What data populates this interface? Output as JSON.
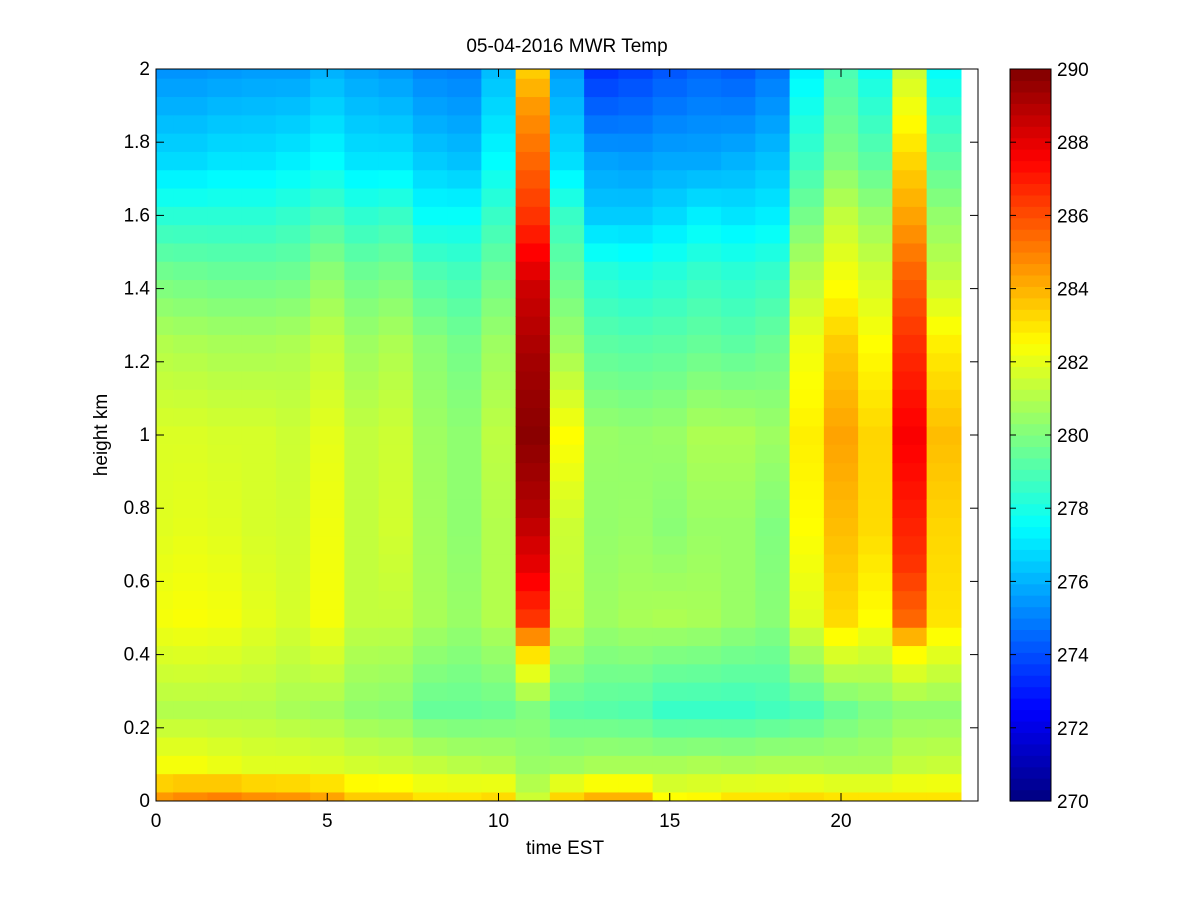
{
  "chart_data": {
    "type": "heatmap",
    "title": "05-04-2016 MWR Temp",
    "xlabel": "time EST",
    "ylabel": "height km",
    "xlim": [
      0,
      24
    ],
    "ylim": [
      0,
      2
    ],
    "x_ticks": [
      0,
      5,
      10,
      15,
      20
    ],
    "y_ticks": [
      0,
      0.2,
      0.4,
      0.6,
      0.8,
      1,
      1.2,
      1.4,
      1.6,
      1.8,
      2
    ],
    "colorbar": {
      "min": 270,
      "max": 290,
      "ticks": [
        270,
        272,
        274,
        276,
        278,
        280,
        282,
        284,
        286,
        288,
        290
      ],
      "colormap": "jet"
    },
    "grid": false,
    "times": [
      0,
      1,
      2,
      3,
      4,
      5,
      6,
      7,
      8,
      9,
      10,
      11,
      12,
      13,
      14,
      15,
      16,
      17,
      18,
      19,
      20,
      21,
      22,
      23
    ],
    "heights": [
      0,
      0.05,
      0.1,
      0.15,
      0.2,
      0.25,
      0.3,
      0.35,
      0.4,
      0.45,
      0.5,
      0.55,
      0.6,
      0.65,
      0.7,
      0.75,
      0.8,
      0.85,
      0.9,
      0.95,
      1.0,
      1.05,
      1.1,
      1.15,
      1.2,
      1.25,
      1.3,
      1.35,
      1.4,
      1.45,
      1.5,
      1.55,
      1.6,
      1.65,
      1.7,
      1.75,
      1.8,
      1.85,
      1.9,
      1.95,
      2.0
    ],
    "temperature_profiles": [
      {
        "time": 0,
        "points": [
          [
            0,
            284.5
          ],
          [
            0.1,
            282.3
          ],
          [
            0.25,
            281.0
          ],
          [
            0.5,
            282.3
          ],
          [
            0.75,
            281.9
          ],
          [
            1.0,
            281.8
          ],
          [
            1.25,
            281.0
          ],
          [
            1.45,
            279.7
          ],
          [
            1.6,
            278.3
          ],
          [
            1.75,
            276.8
          ],
          [
            2.0,
            275.4
          ]
        ]
      },
      {
        "time": 1,
        "points": [
          [
            0,
            284.8
          ],
          [
            0.1,
            282.3
          ],
          [
            0.25,
            281.0
          ],
          [
            0.5,
            282.4
          ],
          [
            0.75,
            282.0
          ],
          [
            1.0,
            281.8
          ],
          [
            1.25,
            280.9
          ],
          [
            1.45,
            279.6
          ],
          [
            1.6,
            278.3
          ],
          [
            1.75,
            276.8
          ],
          [
            2.0,
            275.4
          ]
        ]
      },
      {
        "time": 2,
        "points": [
          [
            0,
            285.0
          ],
          [
            0.1,
            282.1
          ],
          [
            0.25,
            281.0
          ],
          [
            0.5,
            282.3
          ],
          [
            0.75,
            281.9
          ],
          [
            1.0,
            281.7
          ],
          [
            1.25,
            280.8
          ],
          [
            1.45,
            279.5
          ],
          [
            1.6,
            278.3
          ],
          [
            1.75,
            277.0
          ],
          [
            2.0,
            275.5
          ]
        ]
      },
      {
        "time": 3,
        "points": [
          [
            0,
            284.7
          ],
          [
            0.1,
            281.9
          ],
          [
            0.25,
            281.0
          ],
          [
            0.5,
            282.0
          ],
          [
            0.75,
            281.7
          ],
          [
            1.0,
            281.7
          ],
          [
            1.25,
            280.8
          ],
          [
            1.45,
            279.5
          ],
          [
            1.6,
            278.3
          ],
          [
            1.75,
            277.0
          ],
          [
            2.0,
            275.6
          ]
        ]
      },
      {
        "time": 4,
        "points": [
          [
            0,
            284.6
          ],
          [
            0.1,
            281.9
          ],
          [
            0.25,
            280.8
          ],
          [
            0.5,
            281.7
          ],
          [
            0.75,
            281.6
          ],
          [
            1.0,
            281.5
          ],
          [
            1.25,
            280.9
          ],
          [
            1.45,
            279.6
          ],
          [
            1.6,
            278.5
          ],
          [
            1.75,
            277.2
          ],
          [
            2.0,
            275.6
          ]
        ]
      },
      {
        "time": 5,
        "points": [
          [
            0,
            284.3
          ],
          [
            0.1,
            281.8
          ],
          [
            0.25,
            280.7
          ],
          [
            0.5,
            282.3
          ],
          [
            0.75,
            282.2
          ],
          [
            1.0,
            282.0
          ],
          [
            1.25,
            281.3
          ],
          [
            1.45,
            280.2
          ],
          [
            1.6,
            278.9
          ],
          [
            1.75,
            277.5
          ],
          [
            2.0,
            276.0
          ]
        ]
      },
      {
        "time": 6,
        "points": [
          [
            0,
            283.5
          ],
          [
            0.1,
            281.6
          ],
          [
            0.25,
            280.3
          ],
          [
            0.5,
            281.3
          ],
          [
            0.75,
            281.3
          ],
          [
            1.0,
            281.3
          ],
          [
            1.25,
            280.6
          ],
          [
            1.45,
            279.6
          ],
          [
            1.6,
            278.4
          ],
          [
            1.75,
            277.0
          ],
          [
            2.0,
            275.7
          ]
        ]
      },
      {
        "time": 7,
        "points": [
          [
            0,
            283.5
          ],
          [
            0.1,
            281.5
          ],
          [
            0.25,
            280.2
          ],
          [
            0.5,
            281.3
          ],
          [
            0.75,
            281.6
          ],
          [
            1.0,
            281.5
          ],
          [
            1.25,
            280.9
          ],
          [
            1.45,
            279.8
          ],
          [
            1.6,
            278.6
          ],
          [
            1.75,
            277.0
          ],
          [
            2.0,
            275.5
          ]
        ]
      },
      {
        "time": 8,
        "points": [
          [
            0,
            283.0
          ],
          [
            0.1,
            281.3
          ],
          [
            0.25,
            279.5
          ],
          [
            0.5,
            280.8
          ],
          [
            0.75,
            280.7
          ],
          [
            1.0,
            280.6
          ],
          [
            1.25,
            280.2
          ],
          [
            1.45,
            279.0
          ],
          [
            1.6,
            277.6
          ],
          [
            1.75,
            276.5
          ],
          [
            2.0,
            275.1
          ]
        ]
      },
      {
        "time": 9,
        "points": [
          [
            0,
            283.0
          ],
          [
            0.1,
            281.1
          ],
          [
            0.25,
            279.5
          ],
          [
            0.5,
            280.5
          ],
          [
            0.75,
            280.3
          ],
          [
            1.0,
            280.3
          ],
          [
            1.25,
            279.8
          ],
          [
            1.45,
            278.8
          ],
          [
            1.6,
            277.6
          ],
          [
            1.75,
            276.3
          ],
          [
            2.0,
            275.0
          ]
        ]
      },
      {
        "time": 10,
        "points": [
          [
            0,
            283.2
          ],
          [
            0.1,
            281.0
          ],
          [
            0.25,
            279.6
          ],
          [
            0.5,
            281.0
          ],
          [
            0.75,
            281.0
          ],
          [
            1.0,
            281.2
          ],
          [
            1.25,
            280.6
          ],
          [
            1.45,
            279.6
          ],
          [
            1.6,
            278.6
          ],
          [
            1.75,
            277.5
          ],
          [
            2.0,
            276.2
          ]
        ]
      },
      {
        "time": 11,
        "points": [
          [
            0,
            281.5
          ],
          [
            0.1,
            280.5
          ],
          [
            0.25,
            280.0
          ],
          [
            0.4,
            283.0
          ],
          [
            0.5,
            286.5
          ],
          [
            0.65,
            288.0
          ],
          [
            0.8,
            289.0
          ],
          [
            1.0,
            289.8
          ],
          [
            1.2,
            289.3
          ],
          [
            1.4,
            288.5
          ],
          [
            1.5,
            287.5
          ],
          [
            1.6,
            286.5
          ],
          [
            1.75,
            285.5
          ],
          [
            1.9,
            284.5
          ],
          [
            2.0,
            283.5
          ]
        ]
      },
      {
        "time": 12,
        "points": [
          [
            0,
            283.3
          ],
          [
            0.1,
            280.6
          ],
          [
            0.25,
            279.3
          ],
          [
            0.5,
            281.3
          ],
          [
            0.75,
            281.5
          ],
          [
            1.0,
            282.5
          ],
          [
            1.25,
            280.6
          ],
          [
            1.45,
            279.5
          ],
          [
            1.6,
            278.6
          ],
          [
            1.75,
            276.9
          ],
          [
            2.0,
            275.6
          ]
        ]
      },
      {
        "time": 13,
        "points": [
          [
            0,
            284.0
          ],
          [
            0.1,
            280.8
          ],
          [
            0.25,
            279.2
          ],
          [
            0.5,
            280.6
          ],
          [
            0.75,
            280.4
          ],
          [
            1.0,
            280.5
          ],
          [
            1.25,
            279.3
          ],
          [
            1.45,
            278.2
          ],
          [
            1.6,
            276.5
          ],
          [
            1.75,
            275.7
          ],
          [
            2.0,
            273.5
          ]
        ]
      },
      {
        "time": 14,
        "points": [
          [
            0,
            284.0
          ],
          [
            0.1,
            280.8
          ],
          [
            0.25,
            279.1
          ],
          [
            0.5,
            280.8
          ],
          [
            0.75,
            280.5
          ],
          [
            1.0,
            280.4
          ],
          [
            1.25,
            279.2
          ],
          [
            1.45,
            278.0
          ],
          [
            1.6,
            276.5
          ],
          [
            1.75,
            275.6
          ],
          [
            2.0,
            273.8
          ]
        ]
      },
      {
        "time": 15,
        "points": [
          [
            0,
            282.5
          ],
          [
            0.1,
            280.8
          ],
          [
            0.25,
            278.6
          ],
          [
            0.5,
            280.9
          ],
          [
            0.75,
            280.2
          ],
          [
            1.0,
            280.5
          ],
          [
            1.25,
            279.3
          ],
          [
            1.45,
            278.2
          ],
          [
            1.6,
            276.8
          ],
          [
            1.75,
            275.8
          ],
          [
            2.0,
            274.2
          ]
        ]
      },
      {
        "time": 16,
        "points": [
          [
            0,
            282.6
          ],
          [
            0.1,
            280.9
          ],
          [
            0.25,
            278.6
          ],
          [
            0.5,
            280.8
          ],
          [
            0.75,
            280.5
          ],
          [
            1.0,
            280.9
          ],
          [
            1.25,
            279.5
          ],
          [
            1.45,
            278.5
          ],
          [
            1.6,
            277.2
          ],
          [
            1.75,
            275.8
          ],
          [
            2.0,
            274.5
          ]
        ]
      },
      {
        "time": 17,
        "points": [
          [
            0,
            283.0
          ],
          [
            0.1,
            280.8
          ],
          [
            0.25,
            278.6
          ],
          [
            0.5,
            280.5
          ],
          [
            0.75,
            280.5
          ],
          [
            1.0,
            280.9
          ],
          [
            1.25,
            279.3
          ],
          [
            1.45,
            278.3
          ],
          [
            1.6,
            277.0
          ],
          [
            1.75,
            276.0
          ],
          [
            2.0,
            274.3
          ]
        ]
      },
      {
        "time": 18,
        "points": [
          [
            0,
            283.0
          ],
          [
            0.1,
            280.9
          ],
          [
            0.25,
            278.8
          ],
          [
            0.5,
            280.2
          ],
          [
            0.75,
            280.0
          ],
          [
            1.0,
            280.6
          ],
          [
            1.25,
            279.6
          ],
          [
            1.45,
            278.5
          ],
          [
            1.6,
            277.2
          ],
          [
            1.75,
            276.3
          ],
          [
            2.0,
            274.8
          ]
        ]
      },
      {
        "time": 19,
        "points": [
          [
            0,
            283.2
          ],
          [
            0.1,
            280.9
          ],
          [
            0.25,
            279.0
          ],
          [
            0.5,
            281.9
          ],
          [
            0.75,
            282.5
          ],
          [
            1.0,
            282.8
          ],
          [
            1.25,
            282.2
          ],
          [
            1.45,
            281.0
          ],
          [
            1.6,
            279.8
          ],
          [
            1.75,
            278.7
          ],
          [
            2.0,
            277.3
          ]
        ]
      },
      {
        "time": 20,
        "points": [
          [
            0,
            283.0
          ],
          [
            0.1,
            280.8
          ],
          [
            0.25,
            279.6
          ],
          [
            0.5,
            283.2
          ],
          [
            0.75,
            283.8
          ],
          [
            1.0,
            284.3
          ],
          [
            1.25,
            283.5
          ],
          [
            1.45,
            282.2
          ],
          [
            1.6,
            281.3
          ],
          [
            1.75,
            280.0
          ],
          [
            2.0,
            279.0
          ]
        ]
      },
      {
        "time": 21,
        "points": [
          [
            0,
            283.0
          ],
          [
            0.1,
            280.8
          ],
          [
            0.25,
            280.0
          ],
          [
            0.5,
            282.5
          ],
          [
            0.75,
            283.2
          ],
          [
            1.0,
            283.3
          ],
          [
            1.25,
            282.5
          ],
          [
            1.45,
            281.5
          ],
          [
            1.6,
            280.5
          ],
          [
            1.75,
            279.3
          ],
          [
            2.0,
            277.8
          ]
        ]
      },
      {
        "time": 22,
        "points": [
          [
            0,
            283.0
          ],
          [
            0.1,
            281.3
          ],
          [
            0.25,
            280.3
          ],
          [
            0.4,
            282.5
          ],
          [
            0.5,
            285.5
          ],
          [
            0.65,
            286.5
          ],
          [
            0.8,
            287.0
          ],
          [
            1.0,
            287.6
          ],
          [
            1.25,
            286.6
          ],
          [
            1.45,
            285.5
          ],
          [
            1.6,
            284.3
          ],
          [
            1.75,
            283.3
          ],
          [
            2.0,
            281.5
          ]
        ]
      },
      {
        "time": 23,
        "points": [
          [
            0,
            283.0
          ],
          [
            0.1,
            281.4
          ],
          [
            0.25,
            280.3
          ],
          [
            0.5,
            283.0
          ],
          [
            0.75,
            283.3
          ],
          [
            1.0,
            283.8
          ],
          [
            1.25,
            282.8
          ],
          [
            1.45,
            281.2
          ],
          [
            1.6,
            280.4
          ],
          [
            1.75,
            279.3
          ],
          [
            2.0,
            277.6
          ]
        ]
      }
    ]
  }
}
